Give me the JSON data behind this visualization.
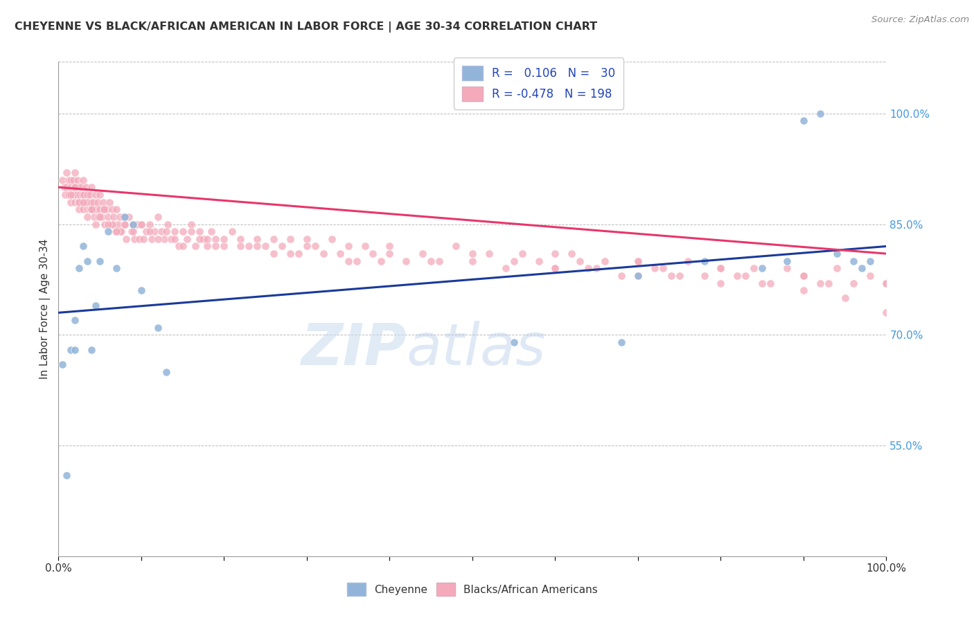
{
  "title": "CHEYENNE VS BLACK/AFRICAN AMERICAN IN LABOR FORCE | AGE 30-34 CORRELATION CHART",
  "source": "Source: ZipAtlas.com",
  "ylabel": "In Labor Force | Age 30-34",
  "xlim": [
    0.0,
    1.0
  ],
  "ylim": [
    0.4,
    1.07
  ],
  "yticks": [
    0.55,
    0.7,
    0.85,
    1.0
  ],
  "ytick_labels": [
    "55.0%",
    "70.0%",
    "85.0%",
    "100.0%"
  ],
  "xtick_labels": [
    "0.0%",
    "",
    "",
    "",
    "",
    "",
    "",
    "",
    "",
    "",
    "100.0%"
  ],
  "background_color": "#ffffff",
  "watermark_zip": "ZIP",
  "watermark_atlas": "atlas",
  "legend_R_blue": "0.106",
  "legend_N_blue": "30",
  "legend_R_pink": "-0.478",
  "legend_N_pink": "198",
  "blue_color": "#92B4D9",
  "pink_color": "#F4AABB",
  "blue_line_color": "#1A3A9A",
  "pink_line_color": "#E8366A",
  "blue_trend_y0": 0.73,
  "blue_trend_y1": 0.82,
  "pink_trend_y0": 0.9,
  "pink_trend_y1": 0.81,
  "blue_x": [
    0.005,
    0.01,
    0.015,
    0.02,
    0.02,
    0.025,
    0.03,
    0.035,
    0.04,
    0.045,
    0.05,
    0.06,
    0.07,
    0.08,
    0.09,
    0.1,
    0.12,
    0.13,
    0.55,
    0.68,
    0.7,
    0.78,
    0.85,
    0.88,
    0.9,
    0.92,
    0.94,
    0.96,
    0.97,
    0.98
  ],
  "blue_y": [
    0.66,
    0.51,
    0.68,
    0.68,
    0.72,
    0.79,
    0.82,
    0.8,
    0.68,
    0.74,
    0.8,
    0.84,
    0.79,
    0.86,
    0.85,
    0.76,
    0.71,
    0.65,
    0.69,
    0.69,
    0.78,
    0.8,
    0.79,
    0.8,
    0.99,
    1.0,
    0.81,
    0.8,
    0.79,
    0.8
  ],
  "pink_x": [
    0.005,
    0.007,
    0.008,
    0.01,
    0.01,
    0.012,
    0.012,
    0.014,
    0.015,
    0.015,
    0.016,
    0.017,
    0.018,
    0.018,
    0.019,
    0.02,
    0.02,
    0.021,
    0.022,
    0.023,
    0.024,
    0.025,
    0.025,
    0.026,
    0.027,
    0.028,
    0.029,
    0.03,
    0.03,
    0.031,
    0.032,
    0.033,
    0.034,
    0.035,
    0.035,
    0.036,
    0.037,
    0.038,
    0.039,
    0.04,
    0.04,
    0.041,
    0.042,
    0.043,
    0.045,
    0.046,
    0.047,
    0.048,
    0.05,
    0.05,
    0.052,
    0.054,
    0.055,
    0.056,
    0.058,
    0.06,
    0.062,
    0.064,
    0.065,
    0.067,
    0.069,
    0.07,
    0.072,
    0.074,
    0.076,
    0.078,
    0.08,
    0.082,
    0.085,
    0.088,
    0.09,
    0.092,
    0.095,
    0.098,
    0.1,
    0.103,
    0.106,
    0.11,
    0.113,
    0.116,
    0.12,
    0.124,
    0.128,
    0.132,
    0.136,
    0.14,
    0.145,
    0.15,
    0.155,
    0.16,
    0.165,
    0.17,
    0.175,
    0.18,
    0.185,
    0.19,
    0.2,
    0.21,
    0.22,
    0.23,
    0.24,
    0.25,
    0.26,
    0.27,
    0.28,
    0.29,
    0.3,
    0.31,
    0.32,
    0.33,
    0.34,
    0.35,
    0.36,
    0.37,
    0.38,
    0.39,
    0.4,
    0.42,
    0.44,
    0.46,
    0.48,
    0.5,
    0.52,
    0.54,
    0.56,
    0.58,
    0.6,
    0.62,
    0.64,
    0.66,
    0.68,
    0.7,
    0.72,
    0.74,
    0.76,
    0.78,
    0.8,
    0.82,
    0.84,
    0.86,
    0.88,
    0.9,
    0.92,
    0.94,
    0.96,
    0.98,
    1.0,
    0.015,
    0.025,
    0.035,
    0.045,
    0.055,
    0.065,
    0.075,
    0.02,
    0.03,
    0.04,
    0.05,
    0.06,
    0.07,
    0.08,
    0.09,
    0.1,
    0.11,
    0.12,
    0.13,
    0.14,
    0.15,
    0.16,
    0.17,
    0.18,
    0.19,
    0.2,
    0.22,
    0.24,
    0.26,
    0.28,
    0.3,
    0.35,
    0.4,
    0.45,
    0.5,
    0.55,
    0.6,
    0.65,
    0.7,
    0.75,
    0.8,
    0.85,
    0.9,
    0.95,
    1.0,
    0.6,
    0.7,
    0.8,
    0.9,
    1.0,
    0.63,
    0.73,
    0.83,
    0.93
  ],
  "pink_y": [
    0.91,
    0.9,
    0.89,
    0.92,
    0.9,
    0.91,
    0.89,
    0.9,
    0.88,
    0.91,
    0.9,
    0.89,
    0.91,
    0.89,
    0.9,
    0.92,
    0.88,
    0.9,
    0.89,
    0.91,
    0.88,
    0.9,
    0.87,
    0.89,
    0.9,
    0.88,
    0.89,
    0.91,
    0.87,
    0.89,
    0.88,
    0.9,
    0.88,
    0.87,
    0.89,
    0.88,
    0.87,
    0.89,
    0.87,
    0.88,
    0.9,
    0.87,
    0.88,
    0.86,
    0.89,
    0.87,
    0.88,
    0.86,
    0.89,
    0.87,
    0.86,
    0.88,
    0.87,
    0.85,
    0.87,
    0.86,
    0.88,
    0.85,
    0.87,
    0.86,
    0.84,
    0.87,
    0.85,
    0.86,
    0.84,
    0.86,
    0.85,
    0.83,
    0.86,
    0.84,
    0.85,
    0.83,
    0.85,
    0.83,
    0.85,
    0.83,
    0.84,
    0.85,
    0.83,
    0.84,
    0.86,
    0.84,
    0.83,
    0.85,
    0.83,
    0.84,
    0.82,
    0.84,
    0.83,
    0.85,
    0.82,
    0.84,
    0.83,
    0.82,
    0.84,
    0.83,
    0.82,
    0.84,
    0.83,
    0.82,
    0.83,
    0.82,
    0.83,
    0.82,
    0.83,
    0.81,
    0.83,
    0.82,
    0.81,
    0.83,
    0.81,
    0.82,
    0.8,
    0.82,
    0.81,
    0.8,
    0.82,
    0.8,
    0.81,
    0.8,
    0.82,
    0.8,
    0.81,
    0.79,
    0.81,
    0.8,
    0.79,
    0.81,
    0.79,
    0.8,
    0.78,
    0.8,
    0.79,
    0.78,
    0.8,
    0.78,
    0.79,
    0.78,
    0.79,
    0.77,
    0.79,
    0.78,
    0.77,
    0.79,
    0.77,
    0.78,
    0.77,
    0.89,
    0.88,
    0.86,
    0.85,
    0.87,
    0.85,
    0.84,
    0.9,
    0.88,
    0.87,
    0.86,
    0.85,
    0.84,
    0.85,
    0.84,
    0.85,
    0.84,
    0.83,
    0.84,
    0.83,
    0.82,
    0.84,
    0.83,
    0.83,
    0.82,
    0.83,
    0.82,
    0.82,
    0.81,
    0.81,
    0.82,
    0.8,
    0.81,
    0.8,
    0.81,
    0.8,
    0.79,
    0.79,
    0.78,
    0.78,
    0.77,
    0.77,
    0.76,
    0.75,
    0.73,
    0.81,
    0.8,
    0.79,
    0.78,
    0.77,
    0.8,
    0.79,
    0.78,
    0.77
  ]
}
